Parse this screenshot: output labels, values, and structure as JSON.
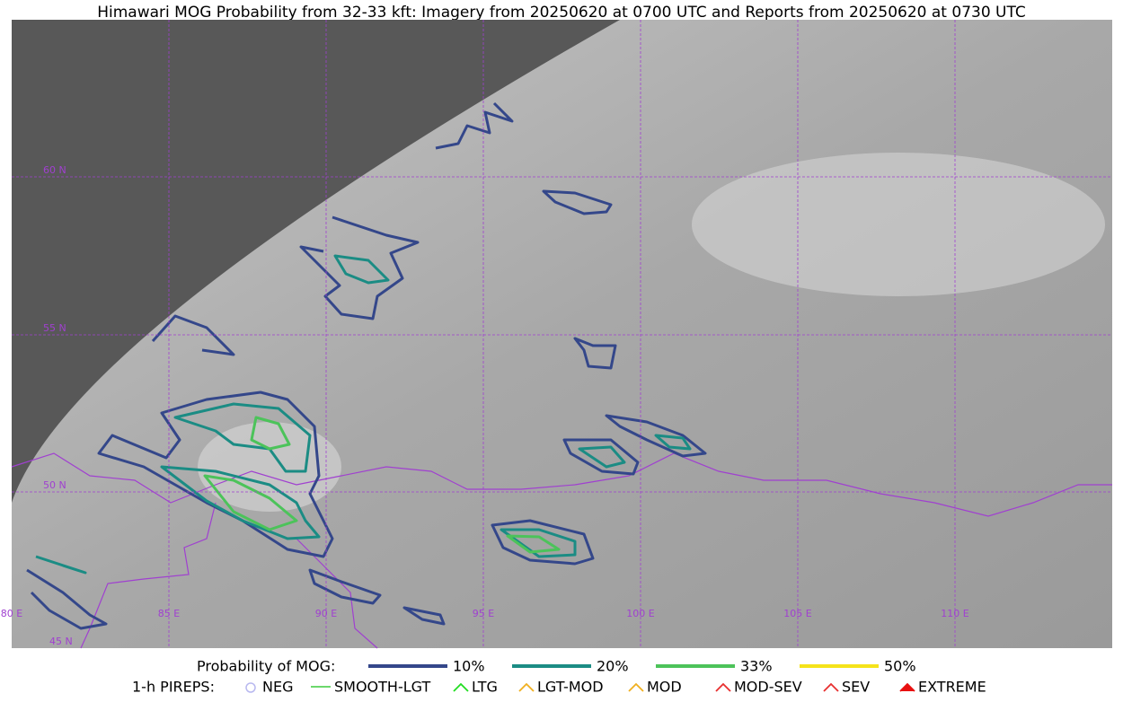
{
  "title": "Himawari MOG Probability from 32-33 kft: Imagery from 20250620 at 0700 UTC and Reports from 20250620 at 0730 UTC",
  "map": {
    "lat_labels": [
      "60 N",
      "55 N",
      "50 N",
      "45 N"
    ],
    "lon_labels": [
      "80 E",
      "85 E",
      "90 E",
      "95 E",
      "100 E",
      "105 E",
      "110 E"
    ]
  },
  "legend": {
    "probability": {
      "label": "Probability of MOG:",
      "items": [
        {
          "label": "10%",
          "color": "#34478a"
        },
        {
          "label": "20%",
          "color": "#1b8c84"
        },
        {
          "label": "33%",
          "color": "#4cc35a"
        },
        {
          "label": "50%",
          "color": "#f5e31a"
        }
      ]
    },
    "pireps": {
      "label": "1-h PIREPS:",
      "items": [
        {
          "label": "NEG",
          "color": "#b8b8f0"
        },
        {
          "label": "SMOOTH-LGT",
          "color": "#3ccc3c"
        },
        {
          "label": "LTG",
          "color": "#22dd22"
        },
        {
          "label": "LGT-MOD",
          "color": "#f0b020"
        },
        {
          "label": "MOD",
          "color": "#f0b020"
        },
        {
          "label": "MOD-SEV",
          "color": "#e83030"
        },
        {
          "label": "SEV",
          "color": "#e83030"
        },
        {
          "label": "EXTREME",
          "color": "#e81010"
        }
      ]
    }
  }
}
